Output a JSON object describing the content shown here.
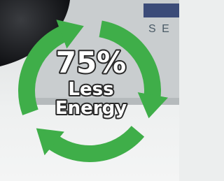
{
  "background": {
    "logo_text": "S E"
  },
  "badge": {
    "headline": "75%",
    "line1": "Less",
    "line2": "Energy"
  }
}
